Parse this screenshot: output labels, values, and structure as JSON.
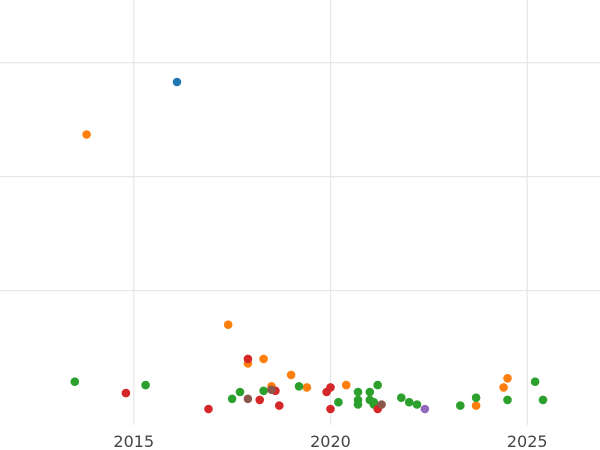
{
  "chart_data": {
    "type": "scatter",
    "title": "",
    "xlabel": "",
    "ylabel": "",
    "xlim": [
      2011.6,
      2026.85
    ],
    "ylim": [
      -0.18,
      3.55
    ],
    "x_ticks": [
      2015,
      2020,
      2025
    ],
    "y_gridlines": [
      1,
      2,
      3
    ],
    "grid": true,
    "legend": "none",
    "series": [
      {
        "color": "#1f77b4",
        "points": [
          {
            "x": 2016.1,
            "y": 2.83
          }
        ]
      },
      {
        "color": "#ff7f0e",
        "points": [
          {
            "x": 2013.8,
            "y": 2.37
          },
          {
            "x": 2017.4,
            "y": 0.7
          },
          {
            "x": 2017.9,
            "y": 0.36
          },
          {
            "x": 2018.3,
            "y": 0.4
          },
          {
            "x": 2018.5,
            "y": 0.16
          },
          {
            "x": 2019.0,
            "y": 0.26
          },
          {
            "x": 2019.4,
            "y": 0.15
          },
          {
            "x": 2020.4,
            "y": 0.17
          },
          {
            "x": 2023.7,
            "y": -0.01
          },
          {
            "x": 2024.4,
            "y": 0.15
          },
          {
            "x": 2024.5,
            "y": 0.23
          }
        ]
      },
      {
        "color": "#2ca02c",
        "points": [
          {
            "x": 2013.5,
            "y": 0.2
          },
          {
            "x": 2015.3,
            "y": 0.17
          },
          {
            "x": 2017.5,
            "y": 0.05
          },
          {
            "x": 2017.7,
            "y": 0.11
          },
          {
            "x": 2018.3,
            "y": 0.12
          },
          {
            "x": 2019.2,
            "y": 0.16
          },
          {
            "x": 2020.2,
            "y": 0.02
          },
          {
            "x": 2020.7,
            "y": 0.04
          },
          {
            "x": 2020.7,
            "y": 0.0
          },
          {
            "x": 2020.7,
            "y": 0.11
          },
          {
            "x": 2021.0,
            "y": 0.11
          },
          {
            "x": 2021.0,
            "y": 0.04
          },
          {
            "x": 2021.1,
            "y": 0.02
          },
          {
            "x": 2021.1,
            "y": 0.0
          },
          {
            "x": 2021.2,
            "y": 0.17
          },
          {
            "x": 2021.8,
            "y": 0.06
          },
          {
            "x": 2022.0,
            "y": 0.02
          },
          {
            "x": 2022.2,
            "y": 0.0
          },
          {
            "x": 2023.3,
            "y": -0.01
          },
          {
            "x": 2023.7,
            "y": 0.06
          },
          {
            "x": 2024.5,
            "y": 0.04
          },
          {
            "x": 2025.2,
            "y": 0.2
          },
          {
            "x": 2025.4,
            "y": 0.04
          }
        ]
      },
      {
        "color": "#d62728",
        "points": [
          {
            "x": 2014.8,
            "y": 0.1
          },
          {
            "x": 2016.9,
            "y": -0.04
          },
          {
            "x": 2017.9,
            "y": 0.4
          },
          {
            "x": 2018.2,
            "y": 0.04
          },
          {
            "x": 2018.6,
            "y": 0.12
          },
          {
            "x": 2018.7,
            "y": -0.01
          },
          {
            "x": 2019.9,
            "y": 0.11
          },
          {
            "x": 2020.0,
            "y": 0.15
          },
          {
            "x": 2020.0,
            "y": -0.04
          },
          {
            "x": 2021.2,
            "y": -0.04
          }
        ]
      },
      {
        "color": "#8c564b",
        "points": [
          {
            "x": 2017.9,
            "y": 0.05
          },
          {
            "x": 2018.5,
            "y": 0.13
          },
          {
            "x": 2021.3,
            "y": 0.0
          }
        ]
      },
      {
        "color": "#9467bd",
        "points": [
          {
            "x": 2022.4,
            "y": -0.04
          }
        ]
      }
    ]
  }
}
